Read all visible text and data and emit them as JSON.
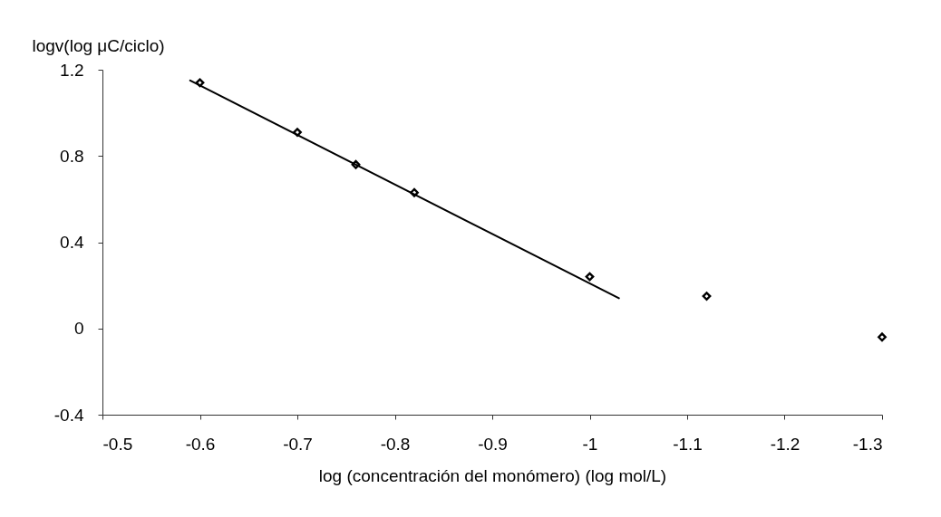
{
  "chart_data": {
    "type": "scatter",
    "xlabel": "log (concentración del monómero)  (log mol/L)",
    "ylabel": "logv(log μC/ciclo)",
    "xlim": [
      -0.5,
      -1.3
    ],
    "xticks": [
      -0.5,
      -0.6,
      -0.7,
      -0.8,
      -0.9,
      -1,
      -1.1,
      -1.2,
      -1.3
    ],
    "ylim": [
      -0.4,
      1.2
    ],
    "yticks": [
      -0.4,
      0,
      0.4,
      0.8,
      1.2
    ],
    "series": [
      {
        "type": "line",
        "line_style": "solid",
        "marker": "none",
        "color": "#000000",
        "x": [
          -0.59,
          -1.03
        ],
        "values": [
          1.15,
          0.14
        ]
      },
      {
        "marker": "diamond",
        "color": "#000000",
        "x": [
          -0.6,
          -0.7,
          -0.76,
          -0.82,
          -1.0,
          -1.12,
          -1.3
        ],
        "values": [
          1.14,
          0.91,
          0.76,
          0.63,
          0.24,
          0.15,
          -0.04
        ]
      }
    ]
  }
}
